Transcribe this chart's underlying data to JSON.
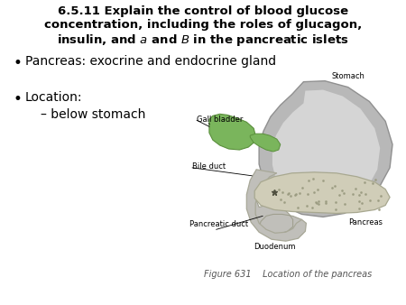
{
  "title_line1": "6.5.11 Explain the control of blood glucose",
  "title_line2": "concentration, including the roles of glucagon,",
  "title_line3_pre": "insulin, and ",
  "title_line3_a": "a",
  "title_line3_mid": " and ",
  "title_line3_b": "B",
  "title_line3_post": " in the pancreatic islets",
  "bullet1": "Pancreas: exocrine and endocrine gland",
  "bullet2_main": "Location:",
  "bullet2_sub": "– below stomach",
  "label_stomach": "Stomach",
  "label_gall": "Gall bladder",
  "label_bile": "Bile duct",
  "label_panduct": "Pancreatic duct",
  "label_duodenum": "Duodenum",
  "label_pancreas": "Pancreas",
  "fig_caption": "Figure 631    Location of the pancreas",
  "bg_color": "#ffffff",
  "title_fontsize": 9.5,
  "body_fontsize": 10,
  "label_fontsize": 6,
  "caption_fontsize": 7
}
